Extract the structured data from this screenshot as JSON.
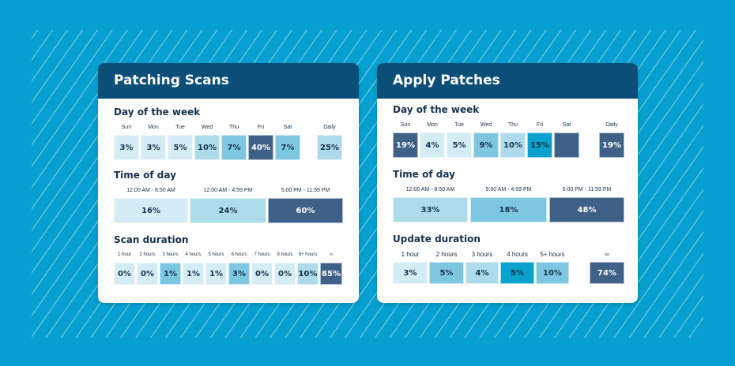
{
  "colors": {
    "l1": "#d4ecf4",
    "l2": "#aedbe9",
    "l3": "#7ec7e0",
    "bright": "#0aa2cc",
    "dark": "#3f6187",
    "background": "#05a0d0",
    "header": "#0b4f78"
  },
  "chart_data": {
    "type": "heatmap",
    "cards": [
      {
        "title": "Patching Scans",
        "sections": [
          {
            "title": "Day of the week",
            "cells": [
              {
                "label": "Sun",
                "value": "3%",
                "level": "l1"
              },
              {
                "label": "Mon",
                "value": "3%",
                "level": "l1"
              },
              {
                "label": "Tue",
                "value": "5%",
                "level": "l1"
              },
              {
                "label": "Wed",
                "value": "10%",
                "level": "l2"
              },
              {
                "label": "Thu",
                "value": "7%",
                "level": "l3"
              },
              {
                "label": "Fri",
                "value": "40%",
                "level": "dark"
              },
              {
                "label": "Sat",
                "value": "7%",
                "level": "l3"
              },
              {
                "label": "Daily",
                "value": "25%",
                "level": "l2"
              }
            ]
          },
          {
            "title": "Time of day",
            "cells": [
              {
                "label": "12:00 AM - 8:50 AM",
                "value": "16%",
                "level": "l1"
              },
              {
                "label": "12:00 AM - 4:59 PM",
                "value": "24%",
                "level": "l2"
              },
              {
                "label": "5:00 PM - 11:59 PM",
                "value": "60%",
                "level": "dark"
              }
            ]
          },
          {
            "title": "Scan duration",
            "cells": [
              {
                "label": "1 hour",
                "value": "0%",
                "level": "l1"
              },
              {
                "label": "2 hours",
                "value": "0%",
                "level": "l1"
              },
              {
                "label": "3 hours",
                "value": "1%",
                "level": "l3"
              },
              {
                "label": "4 hours",
                "value": "1%",
                "level": "l1"
              },
              {
                "label": "5 hours",
                "value": "1%",
                "level": "l1"
              },
              {
                "label": "6 hours",
                "value": "3%",
                "level": "l3"
              },
              {
                "label": "7 hours",
                "value": "0%",
                "level": "l1"
              },
              {
                "label": "8 hours",
                "value": "0%",
                "level": "l1"
              },
              {
                "label": "9+ hours",
                "value": "10%",
                "level": "l2"
              },
              {
                "label": "∞",
                "value": "85%",
                "level": "dark"
              }
            ]
          }
        ]
      },
      {
        "title": "Apply Patches",
        "sections": [
          {
            "title": "Day of the week",
            "cells": [
              {
                "label": "Sun",
                "value": "19%",
                "level": "dark"
              },
              {
                "label": "Mon",
                "value": "4%",
                "level": "l1"
              },
              {
                "label": "Tue",
                "value": "5%",
                "level": "l1"
              },
              {
                "label": "Wed",
                "value": "9%",
                "level": "l3"
              },
              {
                "label": "Thu",
                "value": "10%",
                "level": "l2"
              },
              {
                "label": "Fri",
                "value": "15%",
                "level": "bright"
              },
              {
                "label": "Sat",
                "value": "",
                "level": "dark"
              },
              {
                "label": "Daily",
                "value": "19%",
                "level": "dark"
              }
            ]
          },
          {
            "title": "Time of day",
            "cells": [
              {
                "label": "12:00 AM - 8:50 AM",
                "value": "33%",
                "level": "l2"
              },
              {
                "label": "9:00 AM - 4:59 PM",
                "value": "18%",
                "level": "l3"
              },
              {
                "label": "5:00 PM - 11:59 PM",
                "value": "48%",
                "level": "dark"
              }
            ]
          },
          {
            "title": "Update duration",
            "cells": [
              {
                "label": "1 hour",
                "value": "3%",
                "level": "l1"
              },
              {
                "label": "2 hours",
                "value": "5%",
                "level": "l3"
              },
              {
                "label": "3 hours",
                "value": "4%",
                "level": "l2"
              },
              {
                "label": "4 hours",
                "value": "5%",
                "level": "bright"
              },
              {
                "label": "5+ hours",
                "value": "10%",
                "level": "l3"
              },
              {
                "label": "∞",
                "value": "74%",
                "level": "dark"
              }
            ]
          }
        ]
      }
    ]
  }
}
